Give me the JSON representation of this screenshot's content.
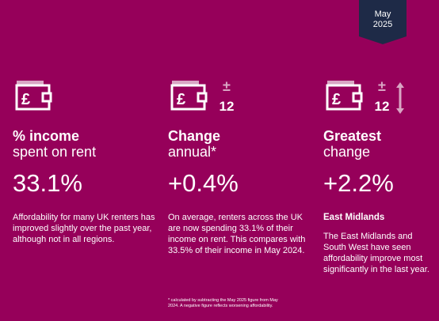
{
  "badge": {
    "line1": "May",
    "line2": "2025"
  },
  "columns": [
    {
      "icon": "wallet-pound-icon",
      "heading_bold": "% income",
      "heading_light": "spent on rent",
      "value": "33.1%",
      "subtitle": "",
      "description": "Affordability for many UK renters has improved slightly over the past year, although not in all regions."
    },
    {
      "icon": "wallet-pound-plus-minus-12-icon",
      "heading_bold": "Change",
      "heading_light": "annual*",
      "value": "+0.4%",
      "subtitle": "",
      "description": "On average, renters across the UK are now spending 33.1% of their income on rent. This compares with 33.5% of their income in May 2024."
    },
    {
      "icon": "wallet-pound-plus-minus-12-arrow-icon",
      "heading_bold": "Greatest",
      "heading_light": "change",
      "value": "+2.2%",
      "subtitle": "East Midlands",
      "description": "The East Midlands and South West have seen affordability improve most significantly in the last year."
    }
  ],
  "icon_text": {
    "plus_minus": "±",
    "months": "12"
  },
  "footnote": "* calculated by subtracting the May 2025 figure from May 2024. A negative figure reflects worsening affordability.",
  "colors": {
    "background": "#96005a",
    "badge": "#1e2a47",
    "icon_accent": "#d9a6c4"
  }
}
